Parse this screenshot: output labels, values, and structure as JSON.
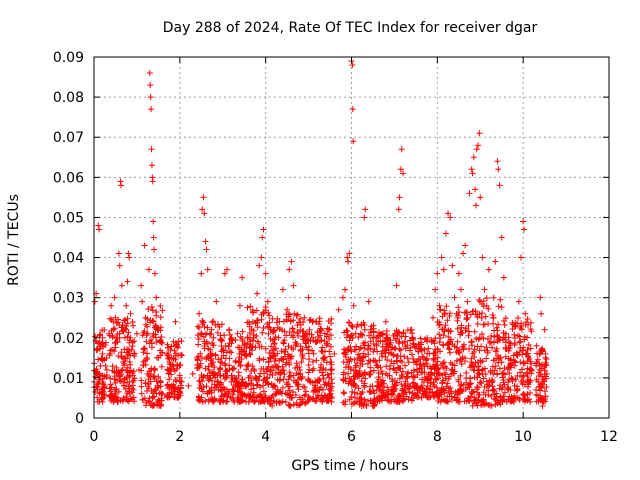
{
  "chart_data": {
    "type": "scatter",
    "title": "Day 288 of 2024, Rate Of TEC Index for receiver dgar",
    "xlabel": "GPS time / hours",
    "ylabel": "ROTI / TECUs",
    "xlim": [
      0,
      12
    ],
    "ylim": [
      0,
      0.09
    ],
    "x_ticks": [
      0,
      2,
      4,
      6,
      8,
      10,
      12
    ],
    "x_tick_labels": [
      "0",
      "2",
      "4",
      "6",
      "8",
      "10",
      "12"
    ],
    "y_ticks": [
      0,
      0.01,
      0.02,
      0.03,
      0.04,
      0.05,
      0.06,
      0.07,
      0.08,
      0.09
    ],
    "y_tick_labels": [
      "0",
      "0.01",
      "0.02",
      "0.03",
      "0.04",
      "0.05",
      "0.06",
      "0.07",
      "0.08",
      "0.09"
    ],
    "grid": true,
    "marker": "+",
    "series": [
      {
        "name": "ROTI",
        "color": "#ff0000",
        "points": [
          [
            0.0,
            0.009
          ],
          [
            0.02,
            0.029
          ],
          [
            0.05,
            0.031
          ],
          [
            0.08,
            0.011
          ],
          [
            0.1,
            0.048
          ],
          [
            0.12,
            0.047
          ],
          [
            0.15,
            0.013
          ],
          [
            0.18,
            0.006
          ],
          [
            0.2,
            0.016
          ],
          [
            0.25,
            0.008
          ],
          [
            0.3,
            0.012
          ],
          [
            0.35,
            0.021
          ],
          [
            0.4,
            0.028
          ],
          [
            0.42,
            0.017
          ],
          [
            0.45,
            0.024
          ],
          [
            0.48,
            0.03
          ],
          [
            0.5,
            0.025
          ],
          [
            0.55,
            0.019
          ],
          [
            0.58,
            0.041
          ],
          [
            0.6,
            0.038
          ],
          [
            0.62,
            0.059
          ],
          [
            0.63,
            0.058
          ],
          [
            0.65,
            0.033
          ],
          [
            0.68,
            0.014
          ],
          [
            0.7,
            0.008
          ],
          [
            0.72,
            0.02
          ],
          [
            0.75,
            0.028
          ],
          [
            0.78,
            0.034
          ],
          [
            0.8,
            0.041
          ],
          [
            0.82,
            0.04
          ],
          [
            0.85,
            0.026
          ],
          [
            0.88,
            0.017
          ],
          [
            0.9,
            0.009
          ],
          [
            0.92,
            0.007
          ],
          [
            0.95,
            0.016
          ],
          [
            1.0,
            0.021
          ],
          [
            1.05,
            0.012
          ],
          [
            1.1,
            0.033
          ],
          [
            1.12,
            0.029
          ],
          [
            1.15,
            0.014
          ],
          [
            1.18,
            0.043
          ],
          [
            1.2,
            0.025
          ],
          [
            1.22,
            0.019
          ],
          [
            1.25,
            0.011
          ],
          [
            1.28,
            0.037
          ],
          [
            1.3,
            0.086
          ],
          [
            1.31,
            0.083
          ],
          [
            1.32,
            0.08
          ],
          [
            1.33,
            0.077
          ],
          [
            1.34,
            0.067
          ],
          [
            1.35,
            0.063
          ],
          [
            1.36,
            0.06
          ],
          [
            1.37,
            0.059
          ],
          [
            1.38,
            0.049
          ],
          [
            1.39,
            0.045
          ],
          [
            1.4,
            0.042
          ],
          [
            1.42,
            0.036
          ],
          [
            1.45,
            0.03
          ],
          [
            1.48,
            0.022
          ],
          [
            1.5,
            0.015
          ],
          [
            1.55,
            0.009
          ],
          [
            1.6,
            0.006
          ],
          [
            1.7,
            0.016
          ],
          [
            1.75,
            0.012
          ],
          [
            1.8,
            0.008
          ],
          [
            1.85,
            0.019
          ],
          [
            1.9,
            0.024
          ],
          [
            1.95,
            0.013
          ],
          [
            2.0,
            0.01
          ],
          [
            2.2,
            0.008
          ],
          [
            2.3,
            0.011
          ],
          [
            2.4,
            0.015
          ],
          [
            2.45,
            0.026
          ],
          [
            2.5,
            0.036
          ],
          [
            2.52,
            0.052
          ],
          [
            2.55,
            0.055
          ],
          [
            2.57,
            0.051
          ],
          [
            2.6,
            0.044
          ],
          [
            2.62,
            0.042
          ],
          [
            2.65,
            0.037
          ],
          [
            2.7,
            0.021
          ],
          [
            2.75,
            0.016
          ],
          [
            2.8,
            0.011
          ],
          [
            2.85,
            0.029
          ],
          [
            2.9,
            0.007
          ],
          [
            2.95,
            0.004
          ],
          [
            3.0,
            0.017
          ],
          [
            3.05,
            0.036
          ],
          [
            3.1,
            0.037
          ],
          [
            3.15,
            0.022
          ],
          [
            3.2,
            0.009
          ],
          [
            3.3,
            0.014
          ],
          [
            3.4,
            0.028
          ],
          [
            3.45,
            0.035
          ],
          [
            3.5,
            0.018
          ],
          [
            3.6,
            0.01
          ],
          [
            3.7,
            0.024
          ],
          [
            3.8,
            0.031
          ],
          [
            3.85,
            0.038
          ],
          [
            3.9,
            0.04
          ],
          [
            3.92,
            0.045
          ],
          [
            3.95,
            0.047
          ],
          [
            4.0,
            0.036
          ],
          [
            4.05,
            0.029
          ],
          [
            4.1,
            0.015
          ],
          [
            4.2,
            0.008
          ],
          [
            4.3,
            0.02
          ],
          [
            4.4,
            0.032
          ],
          [
            4.5,
            0.027
          ],
          [
            4.55,
            0.037
          ],
          [
            4.6,
            0.039
          ],
          [
            4.65,
            0.033
          ],
          [
            4.7,
            0.018
          ],
          [
            4.8,
            0.01
          ],
          [
            4.9,
            0.025
          ],
          [
            5.0,
            0.03
          ],
          [
            5.1,
            0.014
          ],
          [
            5.2,
            0.007
          ],
          [
            5.3,
            0.022
          ],
          [
            5.4,
            0.012
          ],
          [
            5.5,
            0.006
          ],
          [
            5.6,
            0.016
          ],
          [
            5.7,
            0.027
          ],
          [
            5.8,
            0.03
          ],
          [
            5.85,
            0.032
          ],
          [
            5.9,
            0.04
          ],
          [
            5.92,
            0.039
          ],
          [
            5.95,
            0.041
          ],
          [
            6.0,
            0.089
          ],
          [
            6.02,
            0.088
          ],
          [
            6.03,
            0.077
          ],
          [
            6.04,
            0.069
          ],
          [
            6.05,
            0.028
          ],
          [
            6.1,
            0.017
          ],
          [
            6.2,
            0.011
          ],
          [
            6.3,
            0.05
          ],
          [
            6.32,
            0.052
          ],
          [
            6.4,
            0.029
          ],
          [
            6.5,
            0.02
          ],
          [
            6.6,
            0.009
          ],
          [
            6.7,
            0.016
          ],
          [
            6.8,
            0.024
          ],
          [
            6.9,
            0.013
          ],
          [
            7.0,
            0.008
          ],
          [
            7.05,
            0.033
          ],
          [
            7.1,
            0.052
          ],
          [
            7.12,
            0.055
          ],
          [
            7.15,
            0.062
          ],
          [
            7.17,
            0.067
          ],
          [
            7.2,
            0.061
          ],
          [
            7.25,
            0.019
          ],
          [
            7.3,
            0.01
          ],
          [
            7.4,
            0.022
          ],
          [
            7.5,
            0.014
          ],
          [
            7.6,
            0.007
          ],
          [
            7.7,
            0.017
          ],
          [
            7.8,
            0.011
          ],
          [
            7.9,
            0.025
          ],
          [
            7.95,
            0.032
          ],
          [
            8.0,
            0.036
          ],
          [
            8.05,
            0.028
          ],
          [
            8.1,
            0.04
          ],
          [
            8.15,
            0.037
          ],
          [
            8.2,
            0.046
          ],
          [
            8.25,
            0.051
          ],
          [
            8.3,
            0.05
          ],
          [
            8.35,
            0.038
          ],
          [
            8.4,
            0.03
          ],
          [
            8.45,
            0.026
          ],
          [
            8.5,
            0.036
          ],
          [
            8.55,
            0.032
          ],
          [
            8.6,
            0.041
          ],
          [
            8.65,
            0.043
          ],
          [
            8.7,
            0.029
          ],
          [
            8.75,
            0.056
          ],
          [
            8.8,
            0.062
          ],
          [
            8.82,
            0.061
          ],
          [
            8.85,
            0.065
          ],
          [
            8.88,
            0.057
          ],
          [
            8.9,
            0.053
          ],
          [
            8.92,
            0.067
          ],
          [
            8.95,
            0.068
          ],
          [
            8.98,
            0.071
          ],
          [
            9.0,
            0.055
          ],
          [
            9.05,
            0.04
          ],
          [
            9.1,
            0.032
          ],
          [
            9.15,
            0.028
          ],
          [
            9.2,
            0.037
          ],
          [
            9.25,
            0.019
          ],
          [
            9.3,
            0.025
          ],
          [
            9.35,
            0.039
          ],
          [
            9.4,
            0.064
          ],
          [
            9.42,
            0.062
          ],
          [
            9.45,
            0.058
          ],
          [
            9.5,
            0.045
          ],
          [
            9.55,
            0.035
          ],
          [
            9.6,
            0.021
          ],
          [
            9.7,
            0.013
          ],
          [
            9.8,
            0.008
          ],
          [
            9.9,
            0.029
          ],
          [
            9.95,
            0.04
          ],
          [
            10.0,
            0.049
          ],
          [
            10.02,
            0.047
          ],
          [
            10.05,
            0.026
          ],
          [
            10.1,
            0.017
          ],
          [
            10.2,
            0.012
          ],
          [
            10.3,
            0.007
          ],
          [
            10.35,
            0.009
          ],
          [
            10.4,
            0.03
          ],
          [
            10.42,
            0.026
          ],
          [
            10.45,
            0.003
          ],
          [
            10.5,
            0.022
          ],
          [
            10.52,
            0.016
          ],
          [
            10.55,
            0.011
          ]
        ],
        "dense_clusters": [
          [
            0.0,
            0.3,
            0.004,
            0.022
          ],
          [
            0.35,
            0.95,
            0.004,
            0.025
          ],
          [
            1.1,
            1.6,
            0.003,
            0.028
          ],
          [
            1.7,
            2.05,
            0.005,
            0.02
          ],
          [
            2.4,
            3.0,
            0.004,
            0.025
          ],
          [
            3.0,
            3.55,
            0.004,
            0.022
          ],
          [
            3.55,
            4.1,
            0.004,
            0.028
          ],
          [
            4.1,
            4.95,
            0.003,
            0.026
          ],
          [
            4.95,
            5.55,
            0.004,
            0.025
          ],
          [
            5.8,
            6.55,
            0.003,
            0.024
          ],
          [
            6.55,
            7.5,
            0.004,
            0.022
          ],
          [
            7.5,
            8.0,
            0.005,
            0.02
          ],
          [
            8.0,
            8.8,
            0.004,
            0.028
          ],
          [
            8.8,
            9.5,
            0.003,
            0.03
          ],
          [
            9.5,
            10.2,
            0.004,
            0.025
          ],
          [
            10.3,
            10.55,
            0.004,
            0.018
          ]
        ]
      }
    ]
  }
}
